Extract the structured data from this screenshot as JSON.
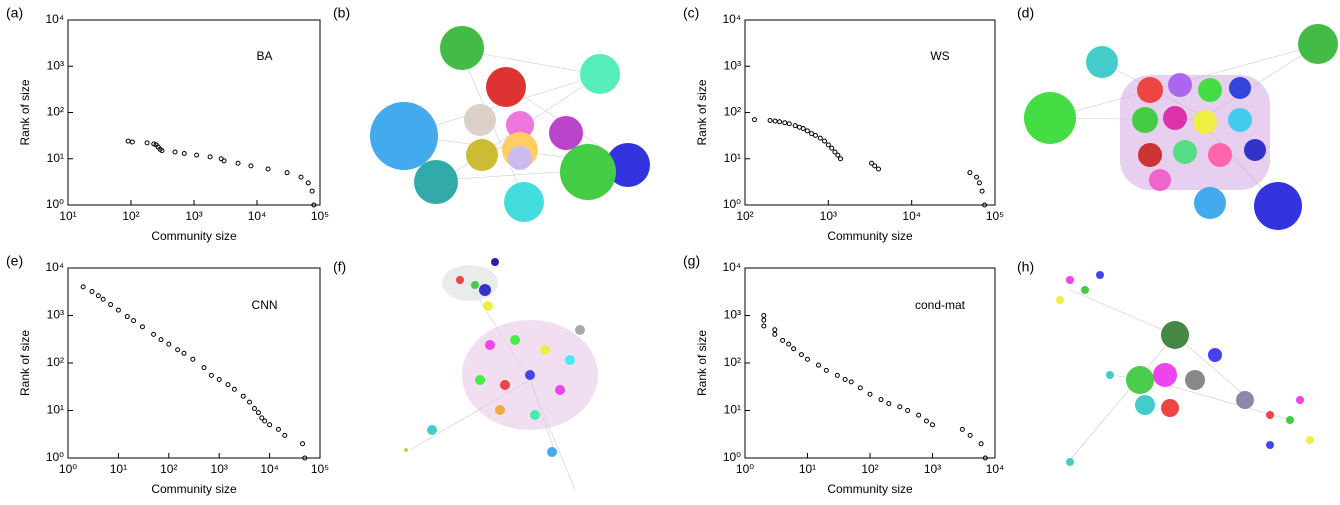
{
  "chart_data": [
    {
      "type": "scatter",
      "panel_label": "(a)",
      "annotation": "BA",
      "xlabel": "Community size",
      "ylabel": "Rank of size",
      "log_x": true,
      "log_y": true,
      "color": "#000000",
      "xlim": [
        10,
        100000
      ],
      "xticks": [
        {
          "value": 10,
          "label": "10¹"
        },
        {
          "value": 100,
          "label": "10²"
        },
        {
          "value": 1000,
          "label": "10³"
        },
        {
          "value": 10000,
          "label": "10⁴"
        },
        {
          "value": 100000,
          "label": "10⁵"
        }
      ],
      "ylim": [
        1,
        10000
      ],
      "yticks": [
        {
          "value": 1,
          "label": "10⁰"
        },
        {
          "value": 10,
          "label": "10¹"
        },
        {
          "value": 100,
          "label": "10²"
        },
        {
          "value": 1000,
          "label": "10³"
        },
        {
          "value": 10000,
          "label": "10⁴"
        }
      ],
      "x": [
        90,
        105,
        180,
        230,
        250,
        270,
        290,
        310,
        500,
        700,
        1100,
        1800,
        2700,
        3000,
        5000,
        8000,
        15000,
        30000,
        50000,
        65000,
        75000,
        80000
      ],
      "values": [
        24,
        23,
        22,
        21,
        20,
        18,
        16,
        15,
        14,
        13,
        12,
        11,
        10,
        9,
        8,
        7,
        6,
        5,
        4,
        3,
        2,
        1
      ]
    },
    {
      "type": "scatter",
      "panel_label": "(c)",
      "annotation": "WS",
      "xlabel": "Community size",
      "ylabel": "Rank of size",
      "log_x": true,
      "log_y": true,
      "color": "#000000",
      "xlim": [
        100,
        100000
      ],
      "xticks": [
        {
          "value": 100,
          "label": "10²"
        },
        {
          "value": 1000,
          "label": "10³"
        },
        {
          "value": 10000,
          "label": "10⁴"
        },
        {
          "value": 100000,
          "label": "10⁵"
        }
      ],
      "ylim": [
        1,
        10000
      ],
      "yticks": [
        {
          "value": 1,
          "label": "10⁰"
        },
        {
          "value": 10,
          "label": "10¹"
        },
        {
          "value": 100,
          "label": "10²"
        },
        {
          "value": 1000,
          "label": "10³"
        },
        {
          "value": 10000,
          "label": "10⁴"
        }
      ],
      "x": [
        130,
        200,
        230,
        260,
        300,
        340,
        400,
        450,
        500,
        560,
        630,
        700,
        800,
        900,
        1000,
        1100,
        1200,
        1300,
        1400,
        3300,
        3600,
        4000,
        50000,
        60000,
        65000,
        70000,
        75000
      ],
      "values": [
        70,
        67,
        65,
        63,
        60,
        57,
        52,
        48,
        45,
        40,
        35,
        32,
        28,
        24,
        20,
        17,
        14,
        12,
        10,
        8,
        7,
        6,
        5,
        4,
        3,
        2,
        1
      ]
    },
    {
      "type": "scatter",
      "panel_label": "(e)",
      "annotation": "CNN",
      "xlabel": "Community size",
      "ylabel": "Rank of size",
      "log_x": true,
      "log_y": true,
      "color": "#000000",
      "xlim": [
        1,
        100000
      ],
      "xticks": [
        {
          "value": 1,
          "label": "10⁰"
        },
        {
          "value": 10,
          "label": "10¹"
        },
        {
          "value": 100,
          "label": "10²"
        },
        {
          "value": 1000,
          "label": "10³"
        },
        {
          "value": 10000,
          "label": "10⁴"
        },
        {
          "value": 100000,
          "label": "10⁵"
        }
      ],
      "ylim": [
        1,
        10000
      ],
      "yticks": [
        {
          "value": 1,
          "label": "10⁰"
        },
        {
          "value": 10,
          "label": "10¹"
        },
        {
          "value": 100,
          "label": "10²"
        },
        {
          "value": 1000,
          "label": "10³"
        },
        {
          "value": 10000,
          "label": "10⁴"
        }
      ],
      "x": [
        2,
        3,
        4,
        5,
        7,
        10,
        15,
        20,
        30,
        50,
        70,
        100,
        150,
        200,
        300,
        500,
        700,
        1000,
        1500,
        2000,
        3000,
        4000,
        5000,
        6000,
        7000,
        8000,
        10000,
        15000,
        20000,
        45000,
        50000
      ],
      "values": [
        4000,
        3200,
        2600,
        2200,
        1700,
        1300,
        950,
        780,
        580,
        400,
        310,
        250,
        190,
        160,
        120,
        80,
        55,
        45,
        35,
        28,
        20,
        15,
        11,
        9,
        7,
        6,
        5,
        4,
        3,
        2,
        1
      ]
    },
    {
      "type": "scatter",
      "panel_label": "(g)",
      "annotation": "cond-mat",
      "xlabel": "Community size",
      "ylabel": "Rank of size",
      "log_x": true,
      "log_y": true,
      "color": "#000000",
      "xlim": [
        1,
        10000
      ],
      "xticks": [
        {
          "value": 1,
          "label": "10⁰"
        },
        {
          "value": 10,
          "label": "10¹"
        },
        {
          "value": 100,
          "label": "10²"
        },
        {
          "value": 1000,
          "label": "10³"
        },
        {
          "value": 10000,
          "label": "10⁴"
        }
      ],
      "ylim": [
        1,
        10000
      ],
      "yticks": [
        {
          "value": 1,
          "label": "10⁰"
        },
        {
          "value": 10,
          "label": "10¹"
        },
        {
          "value": 100,
          "label": "10²"
        },
        {
          "value": 1000,
          "label": "10³"
        },
        {
          "value": 10000,
          "label": "10⁴"
        }
      ],
      "x": [
        2,
        2,
        2,
        3,
        3,
        4,
        5,
        6,
        8,
        10,
        15,
        20,
        30,
        40,
        50,
        70,
        100,
        150,
        200,
        300,
        400,
        600,
        800,
        1000,
        3000,
        4000,
        6000,
        7000
      ],
      "values": [
        1000,
        800,
        600,
        500,
        400,
        300,
        250,
        200,
        150,
        120,
        90,
        70,
        55,
        45,
        40,
        30,
        22,
        17,
        14,
        12,
        10,
        8,
        6,
        5,
        4,
        3,
        2,
        1
      ]
    }
  ],
  "networks": [
    {
      "panel_label": "(b)"
    },
    {
      "panel_label": "(d)"
    },
    {
      "panel_label": "(f)"
    },
    {
      "panel_label": "(h)"
    }
  ]
}
